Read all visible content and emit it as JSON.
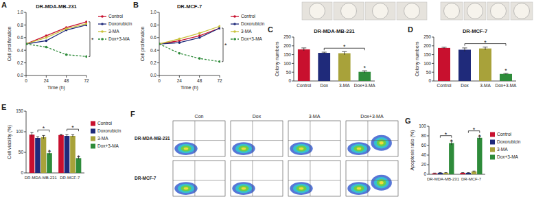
{
  "chart_data": [
    {
      "panel": "A",
      "type": "line",
      "title": "DR-MDA-MB-231",
      "x_label": "Time (h)",
      "y_label": "Cell proliferation",
      "x": [
        0,
        24,
        48,
        72
      ],
      "xlim": [
        0,
        72
      ],
      "xticks": [
        0,
        24,
        48,
        72
      ],
      "ylim": [
        0,
        1
      ],
      "yticks": [
        {
          "value": 0,
          "label": "0.0"
        },
        0.2,
        0.4,
        0.6,
        0.8,
        {
          "value": 1,
          "label": "1.0"
        }
      ],
      "legend": "right",
      "annotations": [
        "*"
      ],
      "series": [
        {
          "name": "Control",
          "color": "#c8102e",
          "values": [
            0.5,
            0.63,
            0.76,
            0.85
          ]
        },
        {
          "name": "Doxorubicin",
          "color": "#1f2a7a",
          "values": [
            0.5,
            0.55,
            0.72,
            0.8
          ]
        },
        {
          "name": "3-MA",
          "color": "#c9c23c",
          "values": [
            0.5,
            0.6,
            0.74,
            0.82
          ]
        },
        {
          "name": "Dox+3-MA",
          "color": "#2e8b3a",
          "line_style": "dashed",
          "values": [
            0.5,
            0.45,
            0.33,
            0.3
          ]
        }
      ]
    },
    {
      "panel": "B",
      "type": "line",
      "title": "DR-MCF-7",
      "x_label": "Time (h)",
      "y_label": "Cell proliferation",
      "x": [
        0,
        24,
        48,
        72
      ],
      "xlim": [
        0,
        72
      ],
      "xticks": [
        0,
        24,
        48,
        72
      ],
      "ylim": [
        0,
        1
      ],
      "yticks": [
        {
          "value": 0,
          "label": "0.0"
        },
        0.2,
        0.4,
        0.6,
        0.8,
        {
          "value": 1,
          "label": "1.0"
        }
      ],
      "legend": "right",
      "annotations": [
        "*"
      ],
      "series": [
        {
          "name": "Control",
          "color": "#c8102e",
          "values": [
            0.5,
            0.55,
            0.63,
            0.75
          ]
        },
        {
          "name": "Doxorubicin",
          "color": "#1f2a7a",
          "values": [
            0.5,
            0.52,
            0.6,
            0.75
          ]
        },
        {
          "name": "3-MA",
          "color": "#c9c23c",
          "values": [
            0.5,
            0.58,
            0.67,
            0.78
          ]
        },
        {
          "name": "Dox+3-MA",
          "color": "#2e8b3a",
          "line_style": "dashed",
          "values": [
            0.5,
            0.35,
            0.27,
            0.22
          ]
        }
      ]
    },
    {
      "panel": "C",
      "type": "bar",
      "title": "DR-MDA-MB-231",
      "y_label": "Colony numbers",
      "categories": [
        "Control",
        "Dox",
        "3-MA",
        "Dox+3-MA"
      ],
      "values": [
        180,
        160,
        158,
        52
      ],
      "errors": [
        8,
        4,
        9,
        6
      ],
      "colors": [
        "#c8102e",
        "#1f2a7a",
        "#a8a23a",
        "#2e8b3a"
      ],
      "ylim": [
        0,
        250
      ],
      "yticks": [
        0,
        50,
        100,
        150,
        200,
        250
      ],
      "annotations": [
        "*",
        "*"
      ]
    },
    {
      "panel": "D",
      "type": "bar",
      "title": "DR-MCF-7",
      "y_label": "Colony numbers",
      "categories": [
        "Control",
        "Dox",
        "3-MA",
        "Dox+3-MA"
      ],
      "values": [
        188,
        178,
        185,
        40
      ],
      "errors": [
        4,
        10,
        8,
        3
      ],
      "colors": [
        "#c8102e",
        "#1f2a7a",
        "#a8a23a",
        "#2e8b3a"
      ],
      "ylim": [
        0,
        250
      ],
      "yticks": [
        0,
        50,
        100,
        150,
        200,
        250
      ],
      "annotations": [
        "*",
        "*"
      ]
    },
    {
      "panel": "E",
      "type": "bar",
      "y_label": "Cell viability (%)",
      "categories": [
        "DR-MDA-MB-231",
        "DR-MCF-7"
      ],
      "ylim": [
        0,
        150
      ],
      "yticks": [
        0,
        50,
        100,
        150
      ],
      "legend": "right",
      "annotations": [
        "*",
        "*",
        "*",
        "*"
      ],
      "series": [
        {
          "name": "Control",
          "color": "#c8102e",
          "values": [
            93,
            92
          ],
          "errors": [
            5,
            2
          ]
        },
        {
          "name": "Doxorubicin",
          "color": "#1f2a7a",
          "values": [
            85,
            90
          ],
          "errors": [
            3,
            3
          ]
        },
        {
          "name": "3-MA",
          "color": "#a8a23a",
          "values": [
            87,
            90
          ],
          "errors": [
            4,
            3
          ]
        },
        {
          "name": "Dox+3-MA",
          "color": "#2e8b3a",
          "values": [
            48,
            36
          ],
          "errors": [
            4,
            3
          ]
        }
      ]
    },
    {
      "panel": "F",
      "type": "image_grid",
      "columns": [
        "Con",
        "Dox",
        "3-MA",
        "Dox+3-MA"
      ],
      "rows": [
        "DR-MDA-MB-231",
        "DR-MCF-7"
      ]
    },
    {
      "panel": "G",
      "type": "bar",
      "y_label": "Apoptosis ratio (%)",
      "categories": [
        "DR-MDA-MB-231",
        "DR-MCF-7"
      ],
      "ylim": [
        0,
        100
      ],
      "yticks": [
        0,
        20,
        40,
        60,
        80,
        100
      ],
      "legend": "right",
      "annotations": [
        "*",
        "*",
        "*",
        "*"
      ],
      "series": [
        {
          "name": "Control",
          "color": "#c8102e",
          "values": [
            2,
            3
          ],
          "errors": [
            0.5,
            0.5
          ]
        },
        {
          "name": "Doxorubicin",
          "color": "#1f2a7a",
          "values": [
            3,
            3
          ],
          "errors": [
            0.5,
            0.5
          ]
        },
        {
          "name": "3-MA",
          "color": "#a8a23a",
          "values": [
            3,
            6
          ],
          "errors": [
            0.5,
            0.8
          ]
        },
        {
          "name": "Dox+3-MA",
          "color": "#2e8b3a",
          "values": [
            65,
            76
          ],
          "errors": [
            4,
            3
          ]
        }
      ]
    }
  ]
}
